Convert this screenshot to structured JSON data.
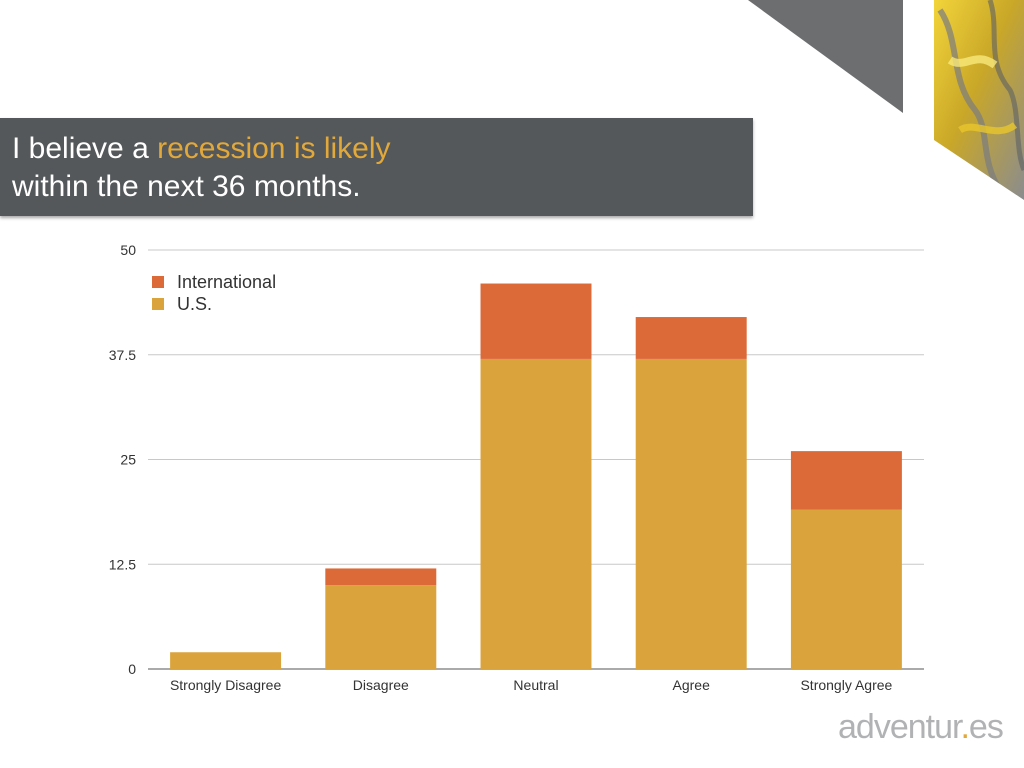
{
  "slide": {
    "title_prefix": "I believe a ",
    "title_highlight": "recession is likely",
    "title_line2": "within the next 36 months.",
    "banner_color": "#54585a",
    "highlight_color": "#e2a83a"
  },
  "logo": {
    "text_before": "adventur",
    "dot": ".",
    "text_after": "es"
  },
  "chart_data": {
    "type": "bar",
    "stacked": true,
    "categories": [
      "Strongly Disagree",
      "Disagree",
      "Neutral",
      "Agree",
      "Strongly Agree"
    ],
    "series": [
      {
        "name": "U.S.",
        "color": "#dba33b",
        "values": [
          2,
          10,
          37,
          37,
          19
        ]
      },
      {
        "name": "International",
        "color": "#dc6a38",
        "values": [
          0,
          2,
          9,
          5,
          7
        ]
      }
    ],
    "ylim": [
      0,
      50
    ],
    "yticks": [
      0,
      12.5,
      25,
      37.5,
      50
    ],
    "ytick_labels": [
      "0",
      "12.5",
      "25",
      "37.5",
      "50"
    ],
    "grid": true,
    "legend": {
      "placement": "top-left",
      "entries": [
        "International",
        "U.S."
      ]
    }
  }
}
